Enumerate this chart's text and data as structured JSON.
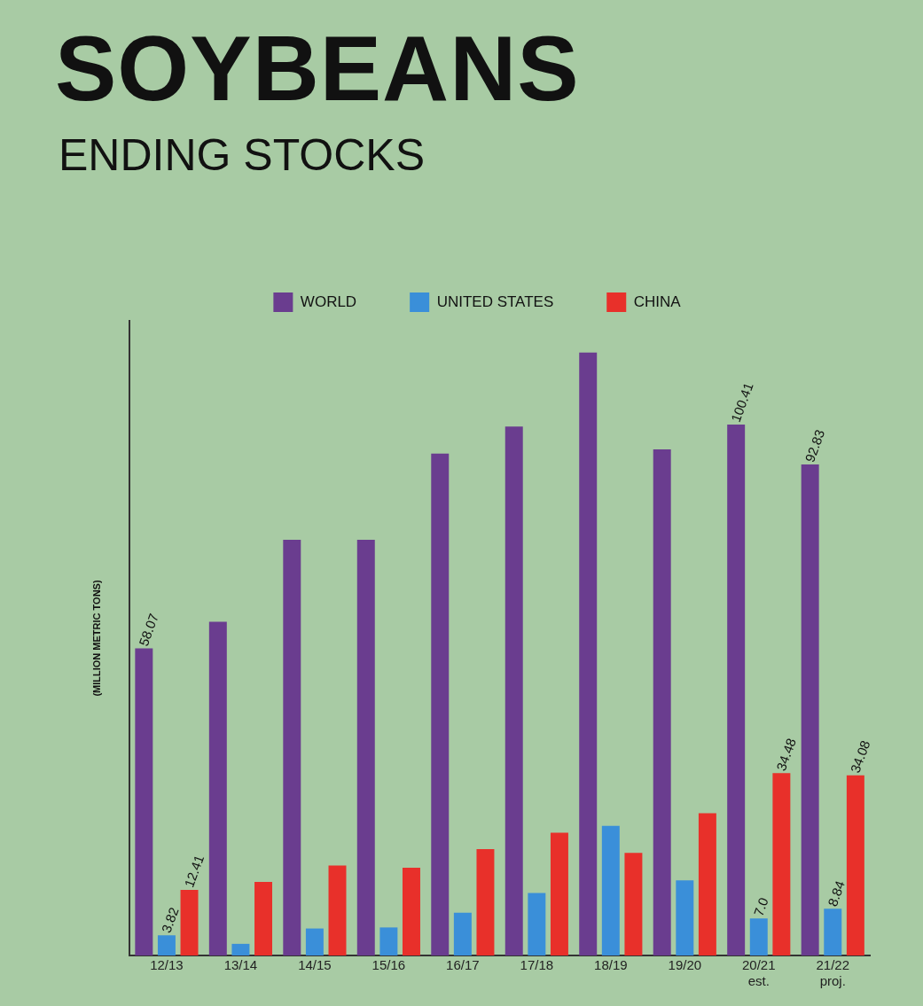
{
  "chart_data": {
    "type": "bar",
    "title": "SOYBEANS",
    "subtitle": "ENDING STOCKS",
    "ylabel": "(MILLION METRIC TONS)",
    "categories": [
      "12/13",
      "13/14",
      "14/15",
      "15/16",
      "16/17",
      "17/18",
      "18/19",
      "19/20",
      "20/21\nest.",
      "21/22\nproj."
    ],
    "series": [
      {
        "name": "WORLD",
        "color": "#6a3d8f",
        "values": [
          58.07,
          63.1,
          78.6,
          78.6,
          94.9,
          100,
          114,
          95.7,
          100.41,
          92.83
        ],
        "value_labels": [
          "58.07",
          null,
          null,
          null,
          null,
          null,
          null,
          null,
          "100.41",
          "92.83"
        ]
      },
      {
        "name": "UNITED STATES",
        "color": "#3a8fd9",
        "values": [
          3.82,
          2.2,
          5.1,
          5.3,
          8.1,
          11.8,
          24.5,
          14.2,
          7.0,
          8.84
        ],
        "value_labels": [
          "3.82",
          null,
          null,
          null,
          null,
          null,
          null,
          null,
          "7.0",
          "8.84"
        ]
      },
      {
        "name": "CHINA",
        "color": "#e8302a",
        "values": [
          12.41,
          13.9,
          17,
          16.6,
          20.1,
          23.2,
          19.4,
          26.9,
          34.48,
          34.08
        ],
        "value_labels": [
          "12.41",
          null,
          null,
          null,
          null,
          null,
          null,
          null,
          "34.48",
          "34.08"
        ]
      }
    ],
    "ylim": [
      0,
      120
    ],
    "tick_labels": "x",
    "grid": false,
    "legend": "top"
  }
}
